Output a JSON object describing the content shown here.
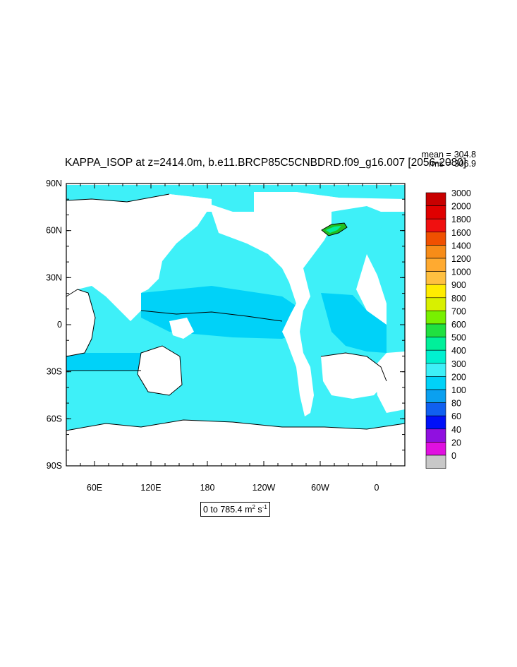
{
  "title": "KAPPA_ISOP at z=2414.0m, b.e11.BRCP85C5CNBDRD.f09_g16.007 [2056-2080]",
  "stats": {
    "mean_label": "mean =",
    "mean_value": "304.8",
    "rms_label": "rms =",
    "rms_value": "306.9"
  },
  "map": {
    "y_axis_labels": [
      "90N",
      "60N",
      "30N",
      "0",
      "30S",
      "60S",
      "90S"
    ],
    "x_axis_labels": [
      "60E",
      "120E",
      "180",
      "120W",
      "60W",
      "0"
    ],
    "data_color_main": "#3ef0f8",
    "data_color_secondary": "#00d2f8",
    "land_color": "#ffffff",
    "highlight_colors": [
      "#00f09a",
      "#20c020"
    ]
  },
  "colorbar": {
    "labels": [
      "3000",
      "2000",
      "1800",
      "1600",
      "1400",
      "1200",
      "1000",
      "900",
      "800",
      "700",
      "600",
      "500",
      "400",
      "300",
      "200",
      "100",
      "80",
      "60",
      "40",
      "20",
      "0"
    ],
    "colors": [
      "#c80000",
      "#e00000",
      "#f01010",
      "#f05000",
      "#f78c18",
      "#ffaa30",
      "#ffc040",
      "#ffec00",
      "#d8f000",
      "#78f000",
      "#20e040",
      "#00f09a",
      "#00f0d0",
      "#3ef0f8",
      "#00d2f8",
      "#0aa0f0",
      "#1060f0",
      "#0010f8",
      "#9010e0",
      "#e010e0",
      "#c8c8c8"
    ]
  },
  "range": {
    "prefix": "0 to 785.4 m",
    "exp1": "2",
    "mid": " s",
    "exp2": "-1"
  }
}
